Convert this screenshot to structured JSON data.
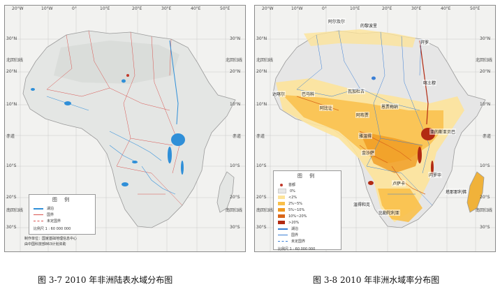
{
  "figures": [
    {
      "id": "surface-water",
      "caption": "图 3-7  2010 年非洲陆表水域分布图",
      "legend": {
        "title": "图  例",
        "items": [
          "湖泊",
          "国界",
          "未定国界"
        ],
        "scale": "比例尺  1 : 60 000 000"
      },
      "credits": [
        "制作单位：国家基础地理信息中心",
        "由中国科技部863计划资助"
      ]
    },
    {
      "id": "water-ratio",
      "caption": "图 3-8  2010 年非洲水域率分布图",
      "legend": {
        "title": "图  例",
        "items": [
          "首都",
          "0%",
          "<2%",
          "2%~5%",
          "5%~10%",
          "10%~20%",
          ">20%",
          "湖泊",
          "国界",
          "未定国界"
        ],
        "scale": "比例尺  1 : 60 000 000"
      },
      "places": [
        "阿尔及尔",
        "的黎波里",
        "开罗",
        "喀土穆",
        "达喀尔",
        "巴马科",
        "瓦加杜古",
        "阿比让",
        "阿布贾",
        "恩贾梅纳",
        "雅温得",
        "亚的斯亚贝巴",
        "金沙萨",
        "内罗毕",
        "卢萨卡",
        "温得和克",
        "塔那那利佛",
        "比勒陀利亚"
      ]
    }
  ],
  "graticule": {
    "top_labels": [
      "20°W",
      "10°W",
      "0°",
      "10°E",
      "20°E",
      "30°E",
      "40°E",
      "50°E"
    ],
    "side_labels": [
      "30°N",
      "北回归线",
      "20°N",
      "10°N",
      "赤道",
      "10°S",
      "20°S",
      "南回归线",
      "30°S"
    ]
  },
  "legend_colors": {
    "capital": "#c0392b",
    "zero": "#e8e8e8",
    "lt2": "#fde39a",
    "2to5": "#f9c04a",
    "5to10": "#f09a20",
    "10to20": "#d9661a",
    "gt20": "#b22a12",
    "lake_left": "#2f8fd8",
    "border_red": "#d9534f",
    "border_blue": "#3a7fd5"
  }
}
